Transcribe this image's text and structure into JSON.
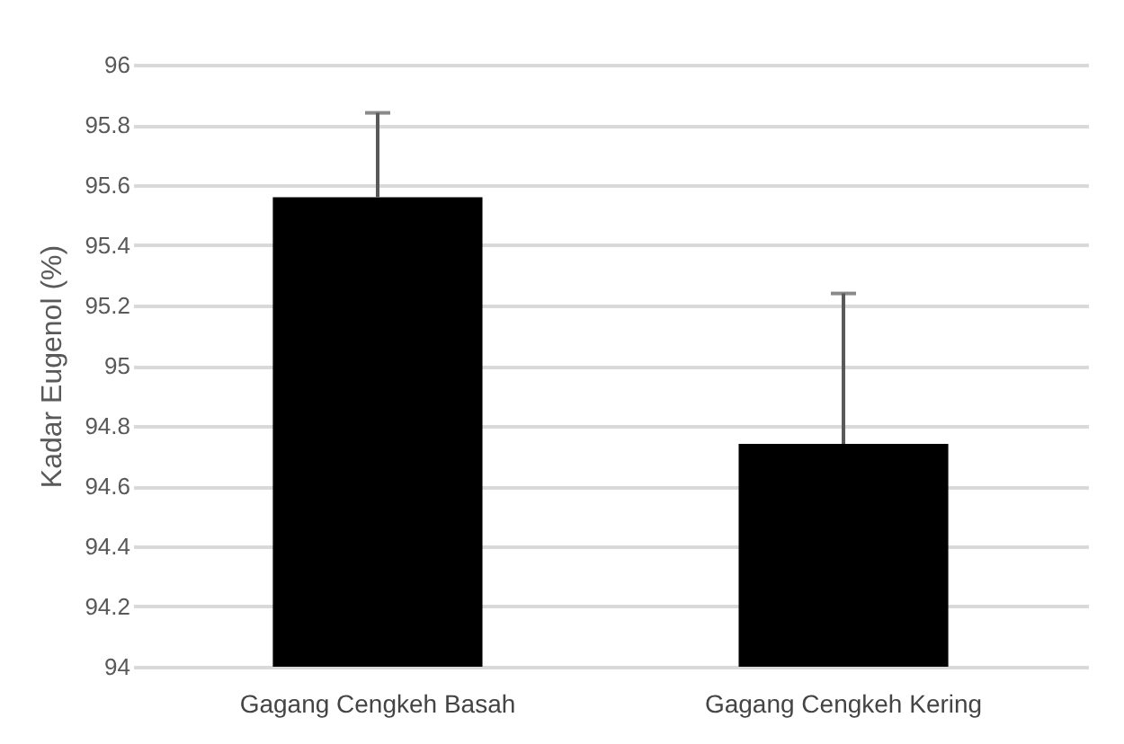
{
  "chart_data": {
    "type": "bar",
    "ylabel": "Kadar Eugenol (%)",
    "categories": [
      "Gagang Cengkeh Basah",
      "Gagang Cengkeh Kering"
    ],
    "values": [
      95.56,
      94.74
    ],
    "colors": [
      "#000000",
      "#000000"
    ],
    "errors": [
      [
        95.56,
        95.84
      ],
      [
        94.74,
        95.24
      ]
    ],
    "ylim": [
      94,
      96
    ],
    "yticks": [
      94,
      94.2,
      94.4,
      94.6,
      94.8,
      95,
      95.2,
      95.4,
      95.6,
      95.8,
      96
    ],
    "grid": "y"
  }
}
